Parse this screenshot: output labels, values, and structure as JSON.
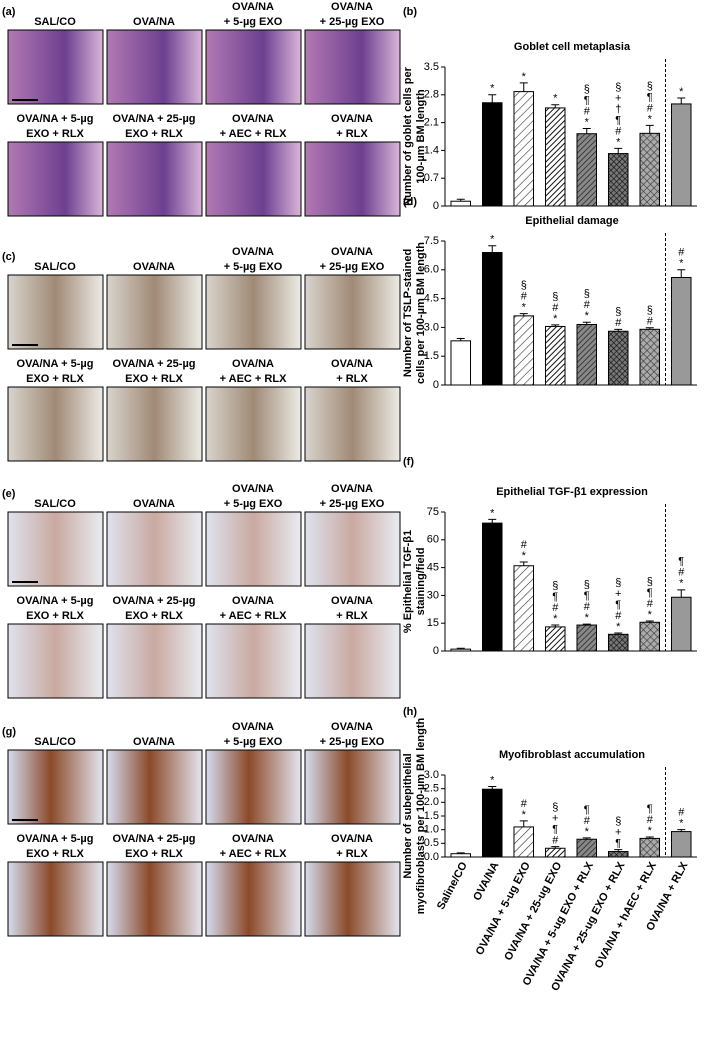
{
  "micrographs": [
    {
      "letter": "(a)",
      "rows": [
        [
          [
            "SAL/CO"
          ],
          [
            "OVA/NA"
          ],
          [
            "OVA/NA",
            "+ 5-µg EXO"
          ],
          [
            "OVA/NA",
            "+ 25-µg EXO"
          ]
        ],
        [
          [
            "OVA/NA + 5-µg",
            "EXO + RLX"
          ],
          [
            "OVA/NA + 25-µg",
            "EXO + RLX"
          ],
          [
            "OVA/NA",
            "+ AEC + RLX"
          ],
          [
            "OVA/NA",
            "+ RLX"
          ]
        ]
      ]
    },
    {
      "letter": "(c)",
      "rows": [
        [
          [
            "SAL/CO"
          ],
          [
            "OVA/NA"
          ],
          [
            "OVA/NA",
            "+ 5-µg EXO"
          ],
          [
            "OVA/NA",
            "+ 25-µg EXO"
          ]
        ],
        [
          [
            "OVA/NA + 5-µg",
            "EXO + RLX"
          ],
          [
            "OVA/NA + 25-µg",
            "EXO + RLX"
          ],
          [
            "OVA/NA",
            "+ AEC + RLX"
          ],
          [
            "OVA/NA",
            "+ RLX"
          ]
        ]
      ]
    },
    {
      "letter": "(e)",
      "rows": [
        [
          [
            "SAL/CO"
          ],
          [
            "OVA/NA"
          ],
          [
            "OVA/NA",
            "+ 5-µg EXO"
          ],
          [
            "OVA/NA",
            "+ 25-µg EXO"
          ]
        ],
        [
          [
            "OVA/NA + 5-µg",
            "EXO + RLX"
          ],
          [
            "OVA/NA + 25-µg",
            "EXO + RLX"
          ],
          [
            "OVA/NA",
            "+ AEC + RLX"
          ],
          [
            "OVA/NA",
            "+ RLX"
          ]
        ]
      ]
    },
    {
      "letter": "(g)",
      "rows": [
        [
          [
            "SAL/CO"
          ],
          [
            "OVA/NA"
          ],
          [
            "OVA/NA",
            "+ 5-µg EXO"
          ],
          [
            "OVA/NA",
            "+ 25-µg EXO"
          ]
        ],
        [
          [
            "OVA/NA + 5-µg",
            "EXO + RLX"
          ],
          [
            "OVA/NA + 25-µg",
            "EXO + RLX"
          ],
          [
            "OVA/NA",
            "+ AEC + RLX"
          ],
          [
            "OVA/NA",
            "+ RLX"
          ]
        ]
      ]
    }
  ],
  "chart_data": [
    {
      "type": "bar",
      "panel": "(b)",
      "title": "Goblet cell metaplasia",
      "ylabel": [
        "Number of goblet cells per",
        "100-µm BM length"
      ],
      "values": [
        0.12,
        2.6,
        2.88,
        2.47,
        1.82,
        1.32,
        1.83,
        2.57
      ],
      "errors": [
        0.05,
        0.2,
        0.22,
        0.08,
        0.13,
        0.13,
        0.2,
        0.15
      ],
      "annotations": [
        [],
        [
          "*"
        ],
        [
          "*"
        ],
        [
          "*"
        ],
        [
          "§",
          "¶",
          "#",
          "*"
        ],
        [
          "§",
          "+",
          "†",
          "¶",
          "#",
          "*"
        ],
        [
          "§",
          "¶",
          "#",
          "*"
        ],
        [
          "*"
        ]
      ],
      "colors": [
        "#ffffff",
        "#000000",
        "hatch-light",
        "hatch-dense",
        "hatch-dark",
        "cross-dark",
        "cross",
        "#999999"
      ],
      "ylim": [
        0,
        3.5
      ],
      "yticks": [
        0,
        0.7,
        1.4,
        2.1,
        2.8,
        3.5
      ],
      "separator": true
    },
    {
      "type": "bar",
      "panel": "(d)",
      "title": "Epithelial damage",
      "ylabel": [
        "Number of TSLP-stained",
        "cells per 100-µm BM length"
      ],
      "values": [
        2.3,
        6.9,
        3.6,
        3.05,
        3.15,
        2.8,
        2.9,
        5.6
      ],
      "errors": [
        0.12,
        0.35,
        0.12,
        0.08,
        0.12,
        0.1,
        0.08,
        0.4
      ],
      "annotations": [
        [],
        [
          "*"
        ],
        [
          "§",
          "#",
          "*"
        ],
        [
          "§",
          "#",
          "*"
        ],
        [
          "§",
          "#",
          "*"
        ],
        [
          "§",
          "#"
        ],
        [
          "§",
          "#"
        ],
        [
          "#",
          "*"
        ]
      ],
      "colors": [
        "#ffffff",
        "#000000",
        "hatch-light",
        "hatch-dense",
        "hatch-dark",
        "cross-dark",
        "cross",
        "#999999"
      ],
      "ylim": [
        0,
        7.5
      ],
      "yticks": [
        0,
        1.5,
        {
          "value": 3,
          "label": "3.0"
        },
        4.5,
        {
          "value": 6,
          "label": "6.0"
        },
        7.5
      ],
      "separator": true
    },
    {
      "type": "bar",
      "panel": "(f)",
      "title": "Epithelial TGF-β1 expression",
      "ylabel": [
        "% Epithelial TGF-β1",
        "staining/field"
      ],
      "values": [
        1,
        69,
        46,
        13,
        14,
        9,
        15.5,
        29
      ],
      "errors": [
        0.5,
        2,
        2,
        1,
        0.5,
        0.7,
        0.7,
        4
      ],
      "annotations": [
        [],
        [
          "*"
        ],
        [
          "#",
          "*"
        ],
        [
          "§",
          "¶",
          "#",
          "*"
        ],
        [
          "§",
          "¶",
          "#",
          "*"
        ],
        [
          "§",
          "+",
          "¶",
          "#",
          "*"
        ],
        [
          "§",
          "¶",
          "#",
          "*"
        ],
        [
          "¶",
          "#",
          "*"
        ]
      ],
      "colors": [
        "#ffffff",
        "#000000",
        "hatch-light",
        "hatch-dense",
        "hatch-dark",
        "cross-dark",
        "cross",
        "#999999"
      ],
      "ylim": [
        0,
        75
      ],
      "yticks": [
        0,
        15,
        30,
        45,
        60,
        75
      ],
      "separator": true
    },
    {
      "type": "bar",
      "panel": "(h)",
      "title": "Myofibroblast accumulation",
      "ylabel": [
        "Number of subepithelial",
        "myofibroblasts per 100-µm BM length"
      ],
      "categories": [
        "Saline/CO",
        "OVA/NA",
        "OVA/NA + 5-ug EXO",
        "OVA/NA + 25-ug EXO",
        "OVA/NA + 5-ug EXO + RLX",
        "OVA/NA + 25-ug EXO + RLX",
        "OVA/NA + hAEC + RLX",
        "OVA/NA + RLX"
      ],
      "values": [
        0.12,
        2.48,
        1.1,
        0.32,
        0.65,
        0.2,
        0.68,
        0.93
      ],
      "errors": [
        0.03,
        0.1,
        0.22,
        0.06,
        0.05,
        0.07,
        0.05,
        0.07
      ],
      "annotations": [
        [],
        [
          "*"
        ],
        [
          "#",
          "*"
        ],
        [
          "§",
          "+",
          "¶",
          "#"
        ],
        [
          "¶",
          "#",
          "*"
        ],
        [
          "§",
          "+",
          "¶"
        ],
        [
          "¶",
          "#",
          "*"
        ],
        [
          "#",
          "*"
        ]
      ],
      "colors": [
        "#ffffff",
        "#000000",
        "hatch-light",
        "hatch-dense",
        "hatch-dark",
        "cross-dark",
        "cross",
        "#999999"
      ],
      "ylim": [
        0,
        3
      ],
      "yticks": [
        {
          "value": 0,
          "label": "0.0"
        },
        0.5,
        {
          "value": 1,
          "label": "1.0"
        },
        1.5,
        {
          "value": 2,
          "label": "2.0"
        },
        2.5,
        {
          "value": 3,
          "label": "3.0"
        }
      ],
      "separator": true
    }
  ]
}
